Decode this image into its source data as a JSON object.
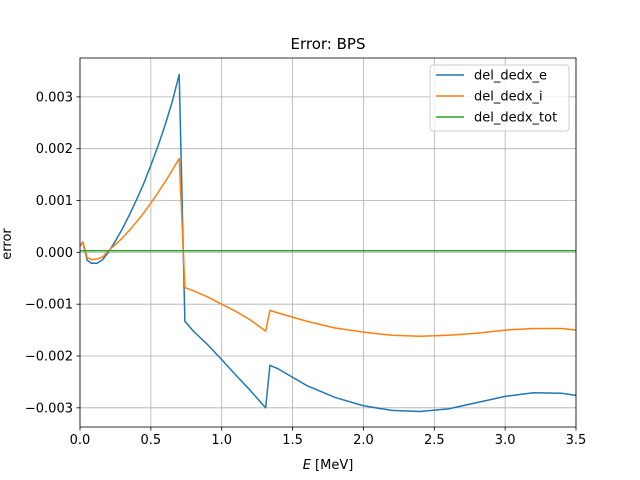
{
  "chart_data": {
    "type": "line",
    "title": "Error: BPS",
    "xlabel_symbol": "E",
    "xlabel_unit": " [MeV]",
    "ylabel": "error",
    "xlim": [
      0.0,
      3.5
    ],
    "ylim": [
      -0.00337,
      0.00375
    ],
    "xticks": [
      0.0,
      0.5,
      1.0,
      1.5,
      2.0,
      2.5,
      3.0,
      3.5
    ],
    "xtick_labels": [
      "0.0",
      "0.5",
      "1.0",
      "1.5",
      "2.0",
      "2.5",
      "3.0",
      "3.5"
    ],
    "yticks": [
      0.003,
      0.002,
      0.001,
      0.0,
      -0.001,
      -0.002,
      -0.003
    ],
    "ytick_labels": [
      "0.003",
      "0.002",
      "0.001",
      "0.000",
      "−0.001",
      "−0.002",
      "−0.003"
    ],
    "grid": true,
    "legend_position": "top-right",
    "series": [
      {
        "name": "del_dedx_e",
        "color": "#1f77b4",
        "x": [
          0.0,
          0.02,
          0.05,
          0.08,
          0.12,
          0.16,
          0.2,
          0.25,
          0.3,
          0.35,
          0.4,
          0.45,
          0.5,
          0.55,
          0.6,
          0.65,
          0.7,
          0.74,
          0.8,
          0.9,
          1.0,
          1.1,
          1.2,
          1.31,
          1.34,
          1.4,
          1.6,
          1.8,
          2.0,
          2.2,
          2.4,
          2.6,
          2.8,
          3.0,
          3.2,
          3.4,
          3.5
        ],
        "y": [
          0.00012,
          0.0002,
          -0.00015,
          -0.00021,
          -0.00021,
          -0.00014,
          0.0,
          0.00022,
          0.00046,
          0.00073,
          0.00102,
          0.00133,
          0.00168,
          0.00205,
          0.00245,
          0.0029,
          0.00343,
          -0.00133,
          -0.00152,
          -0.00178,
          -0.00207,
          -0.00237,
          -0.00266,
          -0.003,
          -0.00218,
          -0.00225,
          -0.00257,
          -0.0028,
          -0.00296,
          -0.00305,
          -0.00307,
          -0.00302,
          -0.0029,
          -0.00278,
          -0.00271,
          -0.00272,
          -0.00276
        ]
      },
      {
        "name": "del_dedx_i",
        "color": "#ff7f0e",
        "x": [
          0.0,
          0.02,
          0.05,
          0.08,
          0.12,
          0.16,
          0.2,
          0.25,
          0.3,
          0.35,
          0.4,
          0.45,
          0.5,
          0.55,
          0.6,
          0.65,
          0.7,
          0.74,
          0.8,
          0.9,
          1.0,
          1.1,
          1.2,
          1.31,
          1.34,
          1.4,
          1.6,
          1.8,
          2.0,
          2.2,
          2.4,
          2.6,
          2.8,
          3.0,
          3.2,
          3.4,
          3.5
        ],
        "y": [
          0.00012,
          0.0002,
          -0.0001,
          -0.00014,
          -0.00013,
          -9e-05,
          3e-05,
          0.00015,
          0.00028,
          0.00043,
          0.00059,
          0.00076,
          0.00095,
          0.00115,
          0.00136,
          0.00158,
          0.00181,
          -0.00068,
          -0.00074,
          -0.00086,
          -0.001,
          -0.00114,
          -0.0013,
          -0.00152,
          -0.00112,
          -0.00117,
          -0.00133,
          -0.00146,
          -0.00154,
          -0.0016,
          -0.00162,
          -0.0016,
          -0.00156,
          -0.0015,
          -0.00147,
          -0.00147,
          -0.0015
        ]
      },
      {
        "name": "del_dedx_tot",
        "color": "#2ca02c",
        "x": [
          0.0,
          3.5
        ],
        "y": [
          3e-05,
          3e-05
        ]
      }
    ]
  }
}
